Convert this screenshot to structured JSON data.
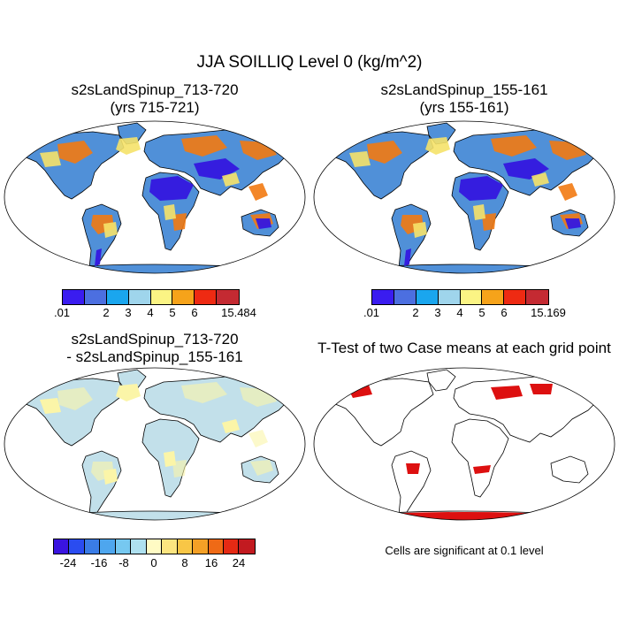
{
  "title": "JJA SOILLIQ Level 0 (kg/m^2)",
  "panels": [
    {
      "title_line1": "s2sLandSpinup_713-720",
      "title_line2": "(yrs 715-721)"
    },
    {
      "title_line1": "s2sLandSpinup_155-161",
      "title_line2": "(yrs 155-161)"
    },
    {
      "title_line1": "s2sLandSpinup_713-720",
      "title_line2": "- s2sLandSpinup_155-161"
    },
    {
      "title_line1": "T-Test of two Case means at each grid point"
    }
  ],
  "colorbars": {
    "field1": {
      "labels": [
        ".01",
        "2",
        "3",
        "4",
        "5",
        "6",
        "15.484"
      ],
      "colors": [
        "#3a1cf0",
        "#4c6fe0",
        "#1aa6ee",
        "#9fd5ec",
        "#fbf484",
        "#f6a31a",
        "#ee2a12",
        "#c42a32"
      ]
    },
    "field2": {
      "labels": [
        ".01",
        "2",
        "3",
        "4",
        "5",
        "6",
        "15.169"
      ],
      "colors": [
        "#3a1cf0",
        "#4c6fe0",
        "#1aa6ee",
        "#9fd5ec",
        "#fbf484",
        "#f6a31a",
        "#ee2a12",
        "#c42a32"
      ]
    },
    "diff": {
      "labels": [
        "-24",
        "-16",
        "-8",
        "0",
        "8",
        "16",
        "24"
      ],
      "colors": [
        "#3a14e0",
        "#2a4cf0",
        "#3a7ce6",
        "#4ea6ee",
        "#76c8f0",
        "#aee0ef",
        "#fffbc4",
        "#fce580",
        "#f8c646",
        "#f4a026",
        "#ef6a16",
        "#e52a14",
        "#c21a20"
      ]
    }
  },
  "significance_note": "Cells are significant at 0.1 level",
  "colors": {
    "land_outline": "#000000",
    "significant": "#dd1010",
    "diff_background": "#c2e0ea"
  }
}
